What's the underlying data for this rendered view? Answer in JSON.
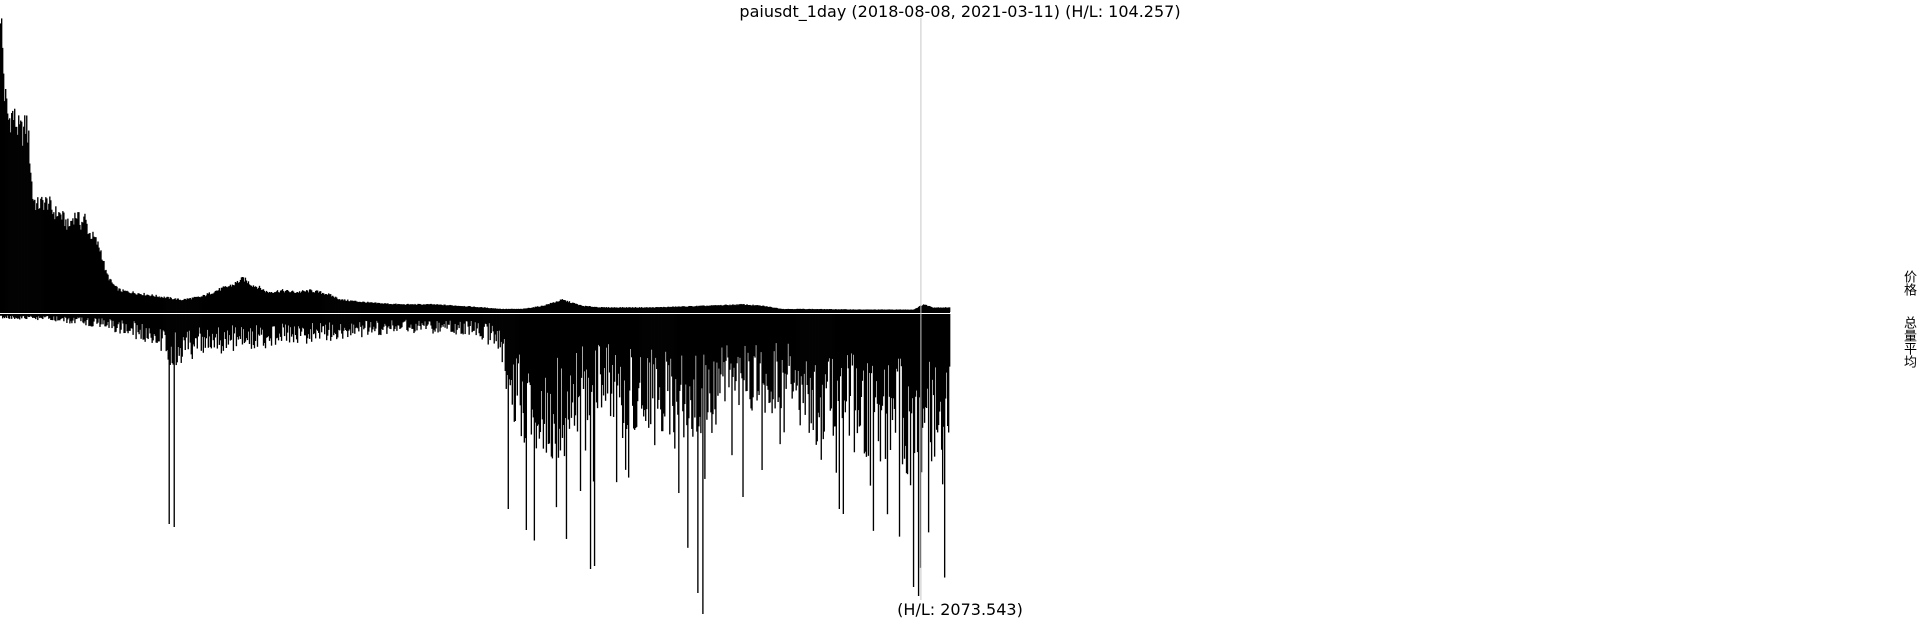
{
  "chart_data": {
    "type": "bar",
    "title": "paiusdt_1day (2018-08-08, 2021-03-11) (H/L: 104.257)",
    "bottom_label": "(H/L: 2073.543)",
    "x_start": "2018-08-08",
    "x_end": "2021-03-11",
    "days": 947,
    "marker_date": "2021-02-11",
    "panels": [
      {
        "name": "价格",
        "hl_ratio": 104.257,
        "direction": "up",
        "color": "#000000",
        "keypoints": [
          [
            0,
            100
          ],
          [
            4,
            72
          ],
          [
            8,
            63
          ],
          [
            12,
            65
          ],
          [
            18,
            60
          ],
          [
            22,
            59
          ],
          [
            26,
            62
          ],
          [
            28,
            56
          ],
          [
            32,
            38
          ],
          [
            36,
            35
          ],
          [
            42,
            36
          ],
          [
            48,
            36
          ],
          [
            52,
            33
          ],
          [
            60,
            32
          ],
          [
            64,
            30
          ],
          [
            68,
            28
          ],
          [
            72,
            31
          ],
          [
            76,
            32
          ],
          [
            80,
            29
          ],
          [
            84,
            31
          ],
          [
            88,
            26
          ],
          [
            94,
            24
          ],
          [
            100,
            20
          ],
          [
            105,
            13
          ],
          [
            110,
            10
          ],
          [
            115,
            8
          ],
          [
            120,
            7
          ],
          [
            140,
            6
          ],
          [
            160,
            5
          ],
          [
            180,
            4
          ],
          [
            200,
            5
          ],
          [
            215,
            7
          ],
          [
            232,
            9
          ],
          [
            242,
            11
          ],
          [
            250,
            9
          ],
          [
            258,
            8
          ],
          [
            266,
            6.5
          ],
          [
            280,
            7
          ],
          [
            295,
            6.5
          ],
          [
            310,
            7
          ],
          [
            325,
            6
          ],
          [
            340,
            4
          ],
          [
            370,
            3
          ],
          [
            400,
            2.5
          ],
          [
            430,
            2.5
          ],
          [
            460,
            2
          ],
          [
            480,
            1.5
          ],
          [
            500,
            1
          ],
          [
            520,
            1
          ],
          [
            540,
            2
          ],
          [
            560,
            4
          ],
          [
            570,
            3
          ],
          [
            580,
            2
          ],
          [
            600,
            1.5
          ],
          [
            650,
            1.5
          ],
          [
            700,
            2
          ],
          [
            740,
            2.5
          ],
          [
            760,
            2
          ],
          [
            780,
            1
          ],
          [
            800,
            1
          ],
          [
            860,
            0.8
          ],
          [
            910,
            0.8
          ],
          [
            920,
            2.5
          ],
          [
            930,
            1.5
          ],
          [
            947,
            1.5
          ]
        ]
      },
      {
        "name": "总量平均",
        "hl_ratio": 2073.543,
        "direction": "down",
        "color": "#000000",
        "keypoints": [
          [
            0,
            1
          ],
          [
            50,
            1.5
          ],
          [
            100,
            3
          ],
          [
            130,
            5
          ],
          [
            160,
            8
          ],
          [
            170,
            14
          ],
          [
            175,
            12
          ],
          [
            190,
            10
          ],
          [
            210,
            9
          ],
          [
            240,
            8
          ],
          [
            280,
            7
          ],
          [
            320,
            6
          ],
          [
            360,
            5
          ],
          [
            420,
            4
          ],
          [
            440,
            4.5
          ],
          [
            470,
            5
          ],
          [
            490,
            7
          ],
          [
            500,
            12
          ],
          [
            510,
            25
          ],
          [
            530,
            30
          ],
          [
            560,
            32
          ],
          [
            580,
            24
          ],
          [
            600,
            20
          ],
          [
            620,
            27
          ],
          [
            640,
            24
          ],
          [
            660,
            26
          ],
          [
            680,
            31
          ],
          [
            700,
            27
          ],
          [
            720,
            24
          ],
          [
            740,
            20
          ],
          [
            760,
            24
          ],
          [
            780,
            19
          ],
          [
            800,
            25
          ],
          [
            820,
            30
          ],
          [
            840,
            26
          ],
          [
            860,
            33
          ],
          [
            880,
            28
          ],
          [
            900,
            33
          ],
          [
            910,
            40
          ],
          [
            920,
            34
          ],
          [
            940,
            36
          ],
          [
            947,
            33
          ]
        ],
        "spikes": [
          [
            168,
            70
          ],
          [
            173,
            71
          ],
          [
            506,
            65
          ],
          [
            524,
            72
          ],
          [
            588,
            85
          ],
          [
            592,
            84
          ],
          [
            695,
            93
          ],
          [
            700,
            100
          ],
          [
            740,
            61
          ],
          [
            759,
            52
          ],
          [
            836,
            65
          ],
          [
            910,
            91
          ],
          [
            915,
            94
          ]
        ]
      }
    ],
    "legend": [
      "价格",
      "总量平均"
    ],
    "legend_position": "right"
  }
}
